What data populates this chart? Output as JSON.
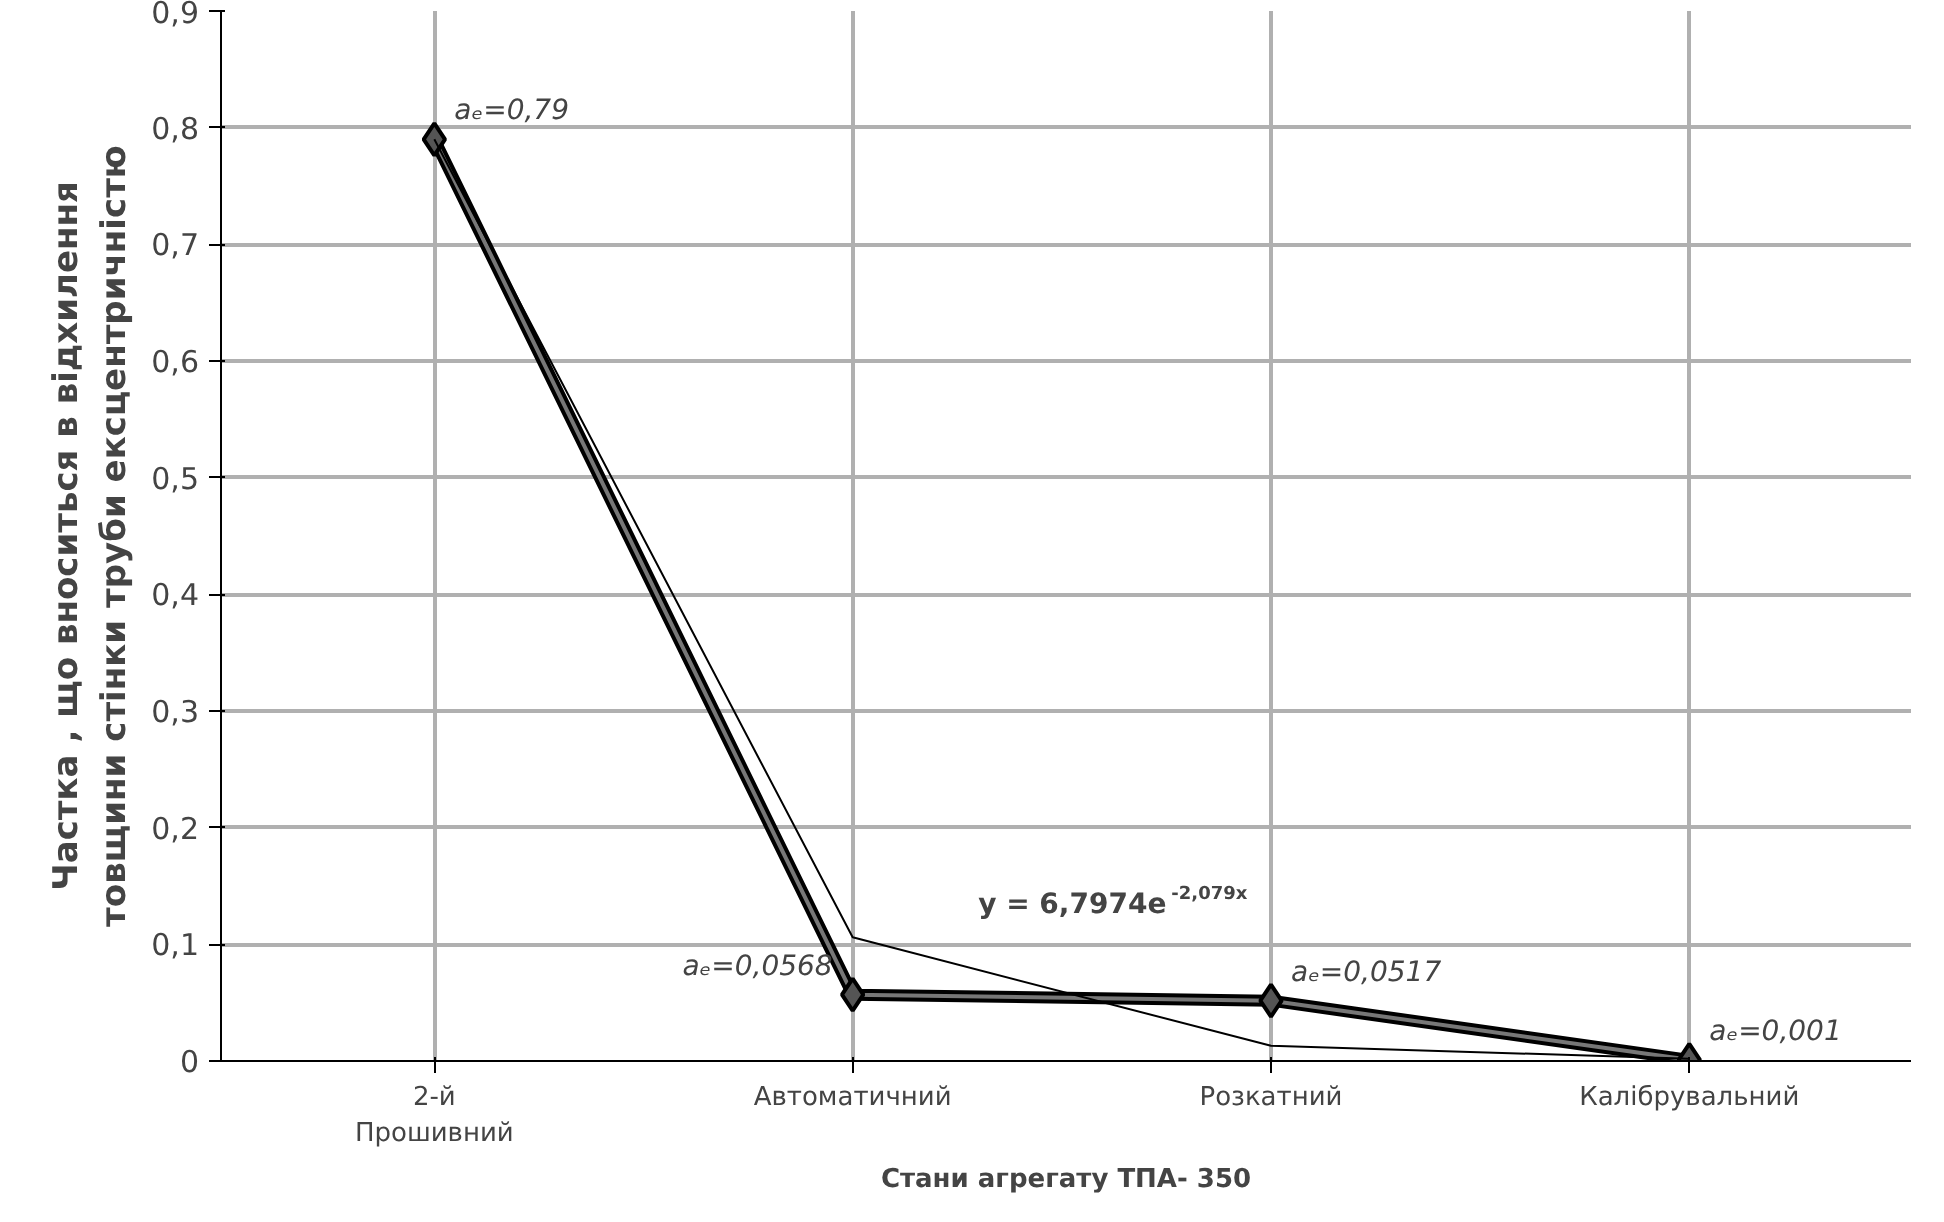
{
  "chart_data": {
    "type": "line",
    "xlabel": "Стани агрегату ТПА- 350",
    "ylabel": "Частка , що вноситься в відхилення\nтовщини стінки труби ексцентричністю",
    "categories": [
      "2-й\nПрошивний",
      "Автоматичний",
      "Розкатний",
      "Калібрувальний"
    ],
    "series": [
      {
        "color": "#000000",
        "values": [
          0.79,
          0.0568,
          0.0517,
          0.001
        ],
        "value_labels": [
          "aₑ=0,79",
          "aₑ=0,0568",
          "aₑ=0,0517",
          "aₑ=0,001"
        ],
        "marker": "diamond"
      },
      {
        "type": "line",
        "color": "#000000",
        "values": [
          0.79,
          0.106,
          0.013,
          0.002
        ]
      }
    ],
    "annotations": [
      "y = 6,7974e$^{-2,079x}$"
    ],
    "ylim": [
      0,
      0.9
    ],
    "yticks": [
      0,
      {
        "value": 0.1,
        "label": "0,1"
      },
      {
        "value": 0.2,
        "label": "0,2"
      },
      {
        "value": 0.3,
        "label": "0,3"
      },
      {
        "value": 0.4,
        "label": "0,4"
      },
      {
        "value": 0.5,
        "label": "0,5"
      },
      {
        "value": 0.6,
        "label": "0,6"
      },
      {
        "value": 0.7,
        "label": "0,7"
      },
      {
        "value": 0.8,
        "label": "0,8"
      },
      {
        "value": 0.9,
        "label": "0,9"
      }
    ],
    "grid": true
  }
}
